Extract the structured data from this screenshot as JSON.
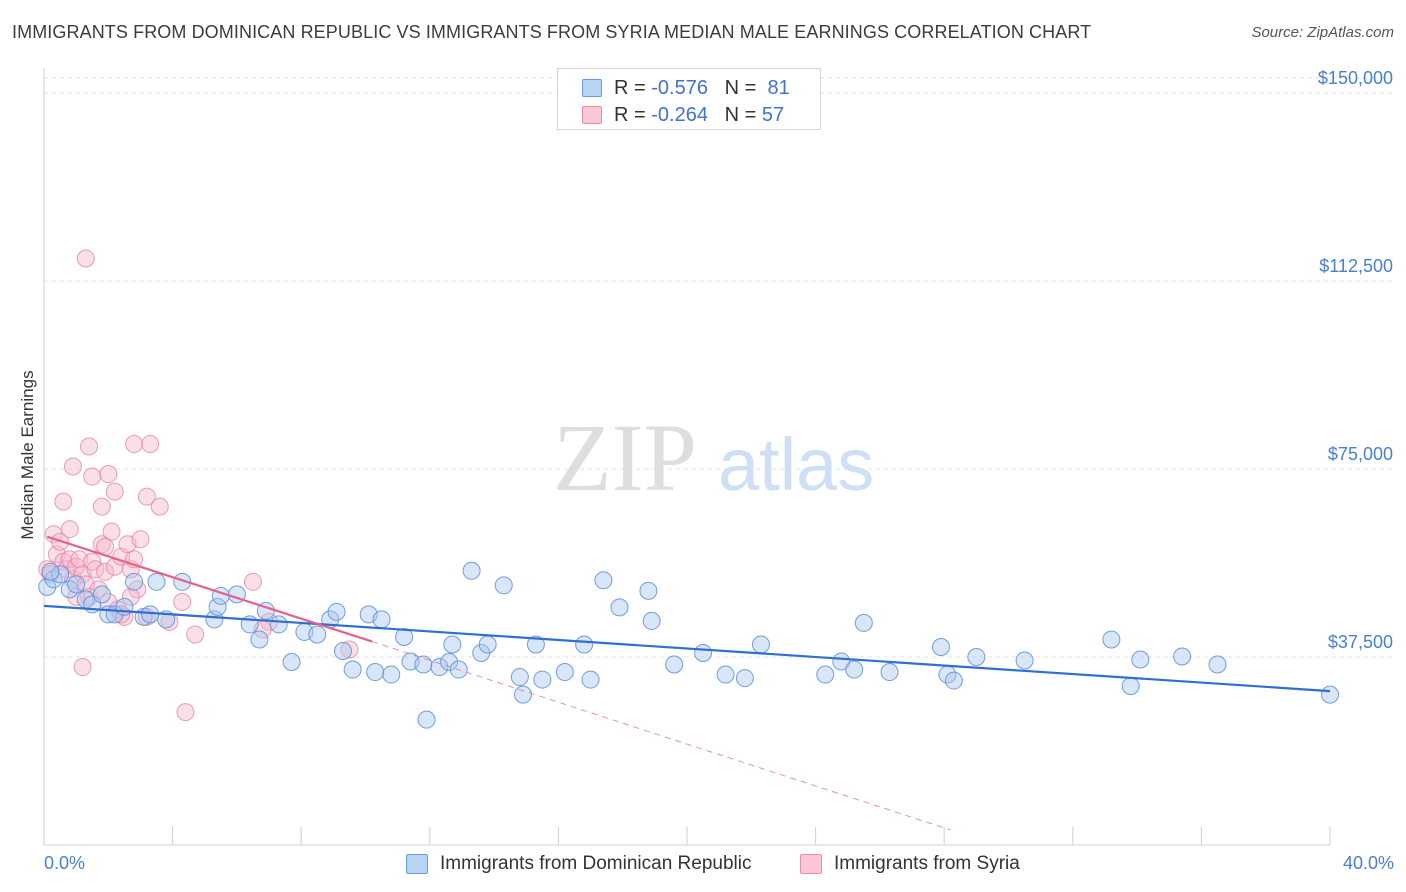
{
  "title": "IMMIGRANTS FROM DOMINICAN REPUBLIC VS IMMIGRANTS FROM SYRIA MEDIAN MALE EARNINGS CORRELATION CHART",
  "source": "Source: ZipAtlas.com",
  "watermark": {
    "zip": "ZIP",
    "atlas": "atlas"
  },
  "legend": {
    "r_label": "R =",
    "n_label": "N =",
    "series1": {
      "r": "-0.576",
      "n": "81"
    },
    "series2": {
      "r": "-0.264",
      "n": "57"
    }
  },
  "colors": {
    "blue_fill": "#a9c8f0",
    "blue_stroke": "#5b8fd6",
    "blue_line": "#2e6fd0",
    "pink_fill": "#f6b8cb",
    "pink_stroke": "#e57fa0",
    "pink_line": "#e5608b",
    "tick_color": "#4a7fcf",
    "grid_color": "#e2e2e2"
  },
  "chart_data": {
    "type": "scatter",
    "title": "IMMIGRANTS FROM DOMINICAN REPUBLIC VS IMMIGRANTS FROM SYRIA MEDIAN MALE EARNINGS CORRELATION CHART",
    "xlabel": "",
    "ylabel": "Median Male Earnings",
    "xlim": [
      0,
      40
    ],
    "ylim": [
      0,
      153000
    ],
    "x_tick_labels": [
      "0.0%",
      "40.0%"
    ],
    "y_ticks": [
      37500,
      75000,
      112500,
      150000
    ],
    "y_tick_labels": [
      "$37,500",
      "$75,000",
      "$112,500",
      "$150,000"
    ],
    "grid": true,
    "series": [
      {
        "name": "Immigrants from Dominican Republic",
        "color": "blue",
        "trend": {
          "x0": 0,
          "y0": 47700,
          "x1": 40,
          "y1": 30700
        },
        "points": [
          [
            0.1,
            51500
          ],
          [
            0.3,
            53000
          ],
          [
            0.5,
            54000
          ],
          [
            0.8,
            51000
          ],
          [
            1.0,
            52000
          ],
          [
            1.3,
            49000
          ],
          [
            1.5,
            48000
          ],
          [
            1.8,
            50000
          ],
          [
            2.0,
            46000
          ],
          [
            2.2,
            46000
          ],
          [
            2.5,
            47500
          ],
          [
            2.8,
            52500
          ],
          [
            3.1,
            45500
          ],
          [
            3.3,
            46000
          ],
          [
            3.5,
            52500
          ],
          [
            3.8,
            45000
          ],
          [
            4.3,
            52500
          ],
          [
            5.3,
            45000
          ],
          [
            5.4,
            47500
          ],
          [
            5.5,
            49700
          ],
          [
            6.0,
            50000
          ],
          [
            6.4,
            44000
          ],
          [
            6.7,
            41000
          ],
          [
            6.9,
            46700
          ],
          [
            7.3,
            44000
          ],
          [
            7.7,
            36500
          ],
          [
            8.1,
            42500
          ],
          [
            8.5,
            42000
          ],
          [
            8.9,
            45000
          ],
          [
            9.1,
            46500
          ],
          [
            9.3,
            38700
          ],
          [
            9.6,
            35000
          ],
          [
            10.1,
            46000
          ],
          [
            10.3,
            34500
          ],
          [
            10.5,
            45000
          ],
          [
            10.8,
            34000
          ],
          [
            11.2,
            41500
          ],
          [
            11.4,
            36600
          ],
          [
            11.8,
            36000
          ],
          [
            11.9,
            25000
          ],
          [
            12.3,
            35500
          ],
          [
            12.6,
            36500
          ],
          [
            12.9,
            35000
          ],
          [
            12.7,
            40000
          ],
          [
            13.3,
            54700
          ],
          [
            13.6,
            38300
          ],
          [
            13.8,
            40000
          ],
          [
            14.3,
            51800
          ],
          [
            14.8,
            33500
          ],
          [
            14.9,
            30000
          ],
          [
            15.3,
            40000
          ],
          [
            15.5,
            33000
          ],
          [
            16.2,
            34500
          ],
          [
            17.0,
            33000
          ],
          [
            16.8,
            40000
          ],
          [
            17.4,
            52800
          ],
          [
            17.9,
            47400
          ],
          [
            18.8,
            50700
          ],
          [
            18.9,
            44700
          ],
          [
            19.6,
            36000
          ],
          [
            20.5,
            38300
          ],
          [
            21.2,
            34000
          ],
          [
            21.8,
            33300
          ],
          [
            22.3,
            40000
          ],
          [
            24.3,
            34000
          ],
          [
            24.8,
            36600
          ],
          [
            25.2,
            35000
          ],
          [
            25.5,
            44300
          ],
          [
            26.3,
            34500
          ],
          [
            27.9,
            39500
          ],
          [
            28.1,
            34000
          ],
          [
            28.3,
            32800
          ],
          [
            29.0,
            37500
          ],
          [
            30.5,
            36800
          ],
          [
            33.2,
            41000
          ],
          [
            33.8,
            31700
          ],
          [
            34.1,
            37000
          ],
          [
            35.4,
            37600
          ],
          [
            36.5,
            36000
          ],
          [
            40.0,
            30000
          ],
          [
            0.2,
            54500
          ]
        ]
      },
      {
        "name": "Immigrants from Syria",
        "color": "pink",
        "trend": {
          "x0": 0.1,
          "y0": 61500,
          "x1": 10.2,
          "y1": 40600
        },
        "trend_extension": {
          "x0": 10.2,
          "y0": 40600,
          "x1": 28.2,
          "y1": 3000
        },
        "points": [
          [
            0.1,
            55000
          ],
          [
            0.2,
            54000
          ],
          [
            0.3,
            62000
          ],
          [
            0.4,
            58000
          ],
          [
            0.5,
            60500
          ],
          [
            0.6,
            56500
          ],
          [
            0.7,
            55000
          ],
          [
            0.8,
            57000
          ],
          [
            0.9,
            53000
          ],
          [
            1.0,
            55500
          ],
          [
            1.1,
            57000
          ],
          [
            1.2,
            54000
          ],
          [
            1.3,
            52000
          ],
          [
            1.4,
            49500
          ],
          [
            1.5,
            56500
          ],
          [
            1.6,
            55000
          ],
          [
            1.7,
            51000
          ],
          [
            1.8,
            60000
          ],
          [
            1.9,
            54500
          ],
          [
            2.0,
            48500
          ],
          [
            2.1,
            62500
          ],
          [
            2.2,
            55500
          ],
          [
            2.3,
            47000
          ],
          [
            2.4,
            57500
          ],
          [
            2.5,
            45500
          ],
          [
            2.6,
            60000
          ],
          [
            2.7,
            55000
          ],
          [
            2.8,
            57000
          ],
          [
            2.9,
            51000
          ],
          [
            3.0,
            61000
          ],
          [
            0.6,
            68500
          ],
          [
            0.9,
            75500
          ],
          [
            1.4,
            79500
          ],
          [
            1.5,
            73500
          ],
          [
            1.8,
            67500
          ],
          [
            2.0,
            74000
          ],
          [
            2.2,
            70500
          ],
          [
            2.8,
            80000
          ],
          [
            3.2,
            69500
          ],
          [
            3.6,
            67500
          ],
          [
            1.3,
            117000
          ],
          [
            3.3,
            80000
          ],
          [
            1.2,
            35500
          ],
          [
            3.2,
            45500
          ],
          [
            4.3,
            48500
          ],
          [
            4.7,
            42000
          ],
          [
            6.5,
            52500
          ],
          [
            7.0,
            44500
          ],
          [
            6.8,
            43000
          ],
          [
            9.5,
            39000
          ],
          [
            4.4,
            26500
          ],
          [
            2.7,
            49500
          ],
          [
            1.0,
            49500
          ],
          [
            0.8,
            63000
          ],
          [
            2.4,
            46000
          ],
          [
            3.9,
            44500
          ],
          [
            1.9,
            59500
          ]
        ]
      }
    ]
  },
  "bottom_legend": {
    "item1": "Immigrants from Dominican Republic",
    "item2": "Immigrants from Syria"
  }
}
